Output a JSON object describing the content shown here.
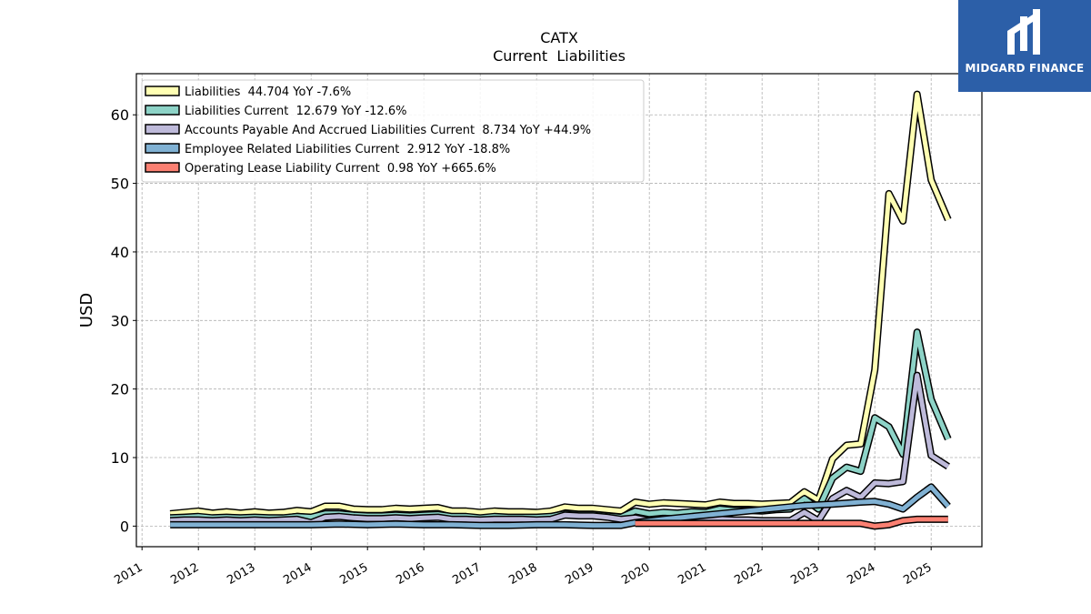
{
  "brand": {
    "name": "MIDGARD FINANCE",
    "bg_color": "#2c5fa8"
  },
  "chart_data": {
    "type": "area",
    "title": "CATX",
    "subtitle": "Current  Liabilities",
    "xlabel": "",
    "ylabel": "USD",
    "xlim": [
      2010.9,
      2025.9
    ],
    "ylim": [
      -3,
      66
    ],
    "x_ticks": [
      "2011",
      "2012",
      "2013",
      "2014",
      "2015",
      "2016",
      "2017",
      "2018",
      "2019",
      "2020",
      "2021",
      "2022",
      "2023",
      "2024",
      "2025"
    ],
    "y_ticks": [
      "0",
      "10",
      "20",
      "30",
      "40",
      "50",
      "60"
    ],
    "grid": true,
    "legend_position": "top-left",
    "series": [
      {
        "name": "Liabilities",
        "legend": "Liabilities  44.704 YoY -7.6%",
        "color": "#ffffb3",
        "points": [
          [
            2011.5,
            1.8
          ],
          [
            2011.75,
            2.0
          ],
          [
            2012.0,
            2.2
          ],
          [
            2012.25,
            1.9
          ],
          [
            2012.5,
            2.1
          ],
          [
            2012.75,
            1.9
          ],
          [
            2013.0,
            2.1
          ],
          [
            2013.25,
            1.9
          ],
          [
            2013.5,
            2.0
          ],
          [
            2013.75,
            2.3
          ],
          [
            2014.0,
            2.1
          ],
          [
            2014.25,
            2.9
          ],
          [
            2014.5,
            2.9
          ],
          [
            2014.75,
            2.5
          ],
          [
            2015.0,
            2.4
          ],
          [
            2015.25,
            2.4
          ],
          [
            2015.5,
            2.6
          ],
          [
            2015.75,
            2.5
          ],
          [
            2016.0,
            2.6
          ],
          [
            2016.25,
            2.7
          ],
          [
            2016.5,
            2.2
          ],
          [
            2016.75,
            2.2
          ],
          [
            2017.0,
            2.0
          ],
          [
            2017.25,
            2.2
          ],
          [
            2017.5,
            2.1
          ],
          [
            2017.75,
            2.1
          ],
          [
            2018.0,
            2.0
          ],
          [
            2018.25,
            2.2
          ],
          [
            2018.5,
            2.8
          ],
          [
            2018.75,
            2.6
          ],
          [
            2019.0,
            2.6
          ],
          [
            2019.25,
            2.4
          ],
          [
            2019.5,
            2.2
          ],
          [
            2019.75,
            3.5
          ],
          [
            2020.0,
            3.2
          ],
          [
            2020.25,
            3.4
          ],
          [
            2020.5,
            3.3
          ],
          [
            2020.75,
            3.2
          ],
          [
            2021.0,
            3.1
          ],
          [
            2021.25,
            3.5
          ],
          [
            2021.5,
            3.3
          ],
          [
            2021.75,
            3.3
          ],
          [
            2022.0,
            3.2
          ],
          [
            2022.25,
            3.3
          ],
          [
            2022.5,
            3.4
          ],
          [
            2022.75,
            5.0
          ],
          [
            2023.0,
            3.8
          ],
          [
            2023.25,
            9.8
          ],
          [
            2023.5,
            11.8
          ],
          [
            2023.75,
            12.0
          ],
          [
            2024.0,
            22.8
          ],
          [
            2024.25,
            48.5
          ],
          [
            2024.5,
            44.5
          ],
          [
            2024.75,
            63.0
          ],
          [
            2025.0,
            50.5
          ],
          [
            2025.3,
            44.7
          ]
        ]
      },
      {
        "name": "Liabilities Current",
        "legend": "Liabilities Current  12.679 YoY -12.6%",
        "color": "#8dd3c7",
        "points": [
          [
            2011.5,
            1.2
          ],
          [
            2011.75,
            1.3
          ],
          [
            2012.0,
            1.4
          ],
          [
            2012.25,
            1.2
          ],
          [
            2012.5,
            1.3
          ],
          [
            2012.75,
            1.2
          ],
          [
            2013.0,
            1.3
          ],
          [
            2013.25,
            1.2
          ],
          [
            2013.5,
            1.2
          ],
          [
            2013.75,
            1.4
          ],
          [
            2014.0,
            1.3
          ],
          [
            2014.25,
            1.8
          ],
          [
            2014.5,
            1.8
          ],
          [
            2014.75,
            1.6
          ],
          [
            2015.0,
            1.5
          ],
          [
            2015.25,
            1.5
          ],
          [
            2015.5,
            1.6
          ],
          [
            2015.75,
            1.5
          ],
          [
            2016.0,
            1.6
          ],
          [
            2016.25,
            1.7
          ],
          [
            2016.5,
            1.4
          ],
          [
            2016.75,
            1.4
          ],
          [
            2017.0,
            1.2
          ],
          [
            2017.25,
            1.4
          ],
          [
            2017.5,
            1.3
          ],
          [
            2017.75,
            1.3
          ],
          [
            2018.0,
            1.3
          ],
          [
            2018.25,
            1.4
          ],
          [
            2018.5,
            1.8
          ],
          [
            2018.75,
            1.7
          ],
          [
            2019.0,
            1.7
          ],
          [
            2019.25,
            1.5
          ],
          [
            2019.5,
            1.3
          ],
          [
            2019.75,
            2.2
          ],
          [
            2020.0,
            1.8
          ],
          [
            2020.25,
            2.0
          ],
          [
            2020.5,
            1.9
          ],
          [
            2020.75,
            2.1
          ],
          [
            2021.0,
            2.0
          ],
          [
            2021.25,
            2.5
          ],
          [
            2021.5,
            2.3
          ],
          [
            2021.75,
            2.3
          ],
          [
            2022.0,
            2.2
          ],
          [
            2022.25,
            2.4
          ],
          [
            2022.5,
            2.5
          ],
          [
            2022.75,
            4.0
          ],
          [
            2023.0,
            2.5
          ],
          [
            2023.25,
            7.0
          ],
          [
            2023.5,
            8.6
          ],
          [
            2023.75,
            8.0
          ],
          [
            2024.0,
            15.8
          ],
          [
            2024.25,
            14.5
          ],
          [
            2024.5,
            10.5
          ],
          [
            2024.75,
            28.3
          ],
          [
            2025.0,
            18.5
          ],
          [
            2025.3,
            12.7
          ]
        ]
      },
      {
        "name": "Accounts Payable And Accrued Liabilities Current",
        "legend": "Accounts Payable And Accrued Liabilities Current  8.734 YoY +44.9%",
        "color": "#bebada",
        "points": [
          [
            2011.5,
            0.8
          ],
          [
            2011.75,
            0.9
          ],
          [
            2012.0,
            0.9
          ],
          [
            2012.25,
            0.8
          ],
          [
            2012.5,
            0.9
          ],
          [
            2012.75,
            0.8
          ],
          [
            2013.0,
            0.9
          ],
          [
            2013.25,
            0.8
          ],
          [
            2013.5,
            0.9
          ],
          [
            2013.75,
            1.0
          ],
          [
            2014.0,
            0.5
          ],
          [
            2014.25,
            1.3
          ],
          [
            2014.5,
            1.4
          ],
          [
            2014.75,
            1.2
          ],
          [
            2015.0,
            1.1
          ],
          [
            2015.25,
            1.1
          ],
          [
            2015.5,
            1.2
          ],
          [
            2015.75,
            1.1
          ],
          [
            2016.0,
            1.2
          ],
          [
            2016.25,
            1.3
          ],
          [
            2016.5,
            1.0
          ],
          [
            2016.75,
            1.0
          ],
          [
            2017.0,
            0.9
          ],
          [
            2017.25,
            1.0
          ],
          [
            2017.5,
            1.0
          ],
          [
            2017.75,
            1.0
          ],
          [
            2018.0,
            0.9
          ],
          [
            2018.25,
            1.0
          ],
          [
            2018.5,
            1.6
          ],
          [
            2018.75,
            1.5
          ],
          [
            2019.0,
            1.5
          ],
          [
            2019.25,
            1.3
          ],
          [
            2019.5,
            1.0
          ],
          [
            2019.75,
            1.2
          ],
          [
            2020.0,
            0.8
          ],
          [
            2020.25,
            0.9
          ],
          [
            2020.5,
            0.8
          ],
          [
            2020.75,
            0.8
          ],
          [
            2021.0,
            0.8
          ],
          [
            2021.25,
            1.0
          ],
          [
            2021.5,
            0.9
          ],
          [
            2021.75,
            0.9
          ],
          [
            2022.0,
            0.8
          ],
          [
            2022.25,
            0.8
          ],
          [
            2022.5,
            0.8
          ],
          [
            2022.75,
            2.0
          ],
          [
            2023.0,
            0.8
          ],
          [
            2023.25,
            4.0
          ],
          [
            2023.5,
            5.2
          ],
          [
            2023.75,
            4.2
          ],
          [
            2024.0,
            6.3
          ],
          [
            2024.25,
            6.2
          ],
          [
            2024.5,
            6.5
          ],
          [
            2024.75,
            22.0
          ],
          [
            2025.0,
            10.3
          ],
          [
            2025.3,
            8.7
          ]
        ]
      },
      {
        "name": "Employee Related Liabilities Current",
        "legend": "Employee Related Liabilities Current  2.912 YoY -18.8%",
        "color": "#80b1d3",
        "points": [
          [
            2011.5,
            0.2
          ],
          [
            2012.0,
            0.2
          ],
          [
            2012.5,
            0.2
          ],
          [
            2013.0,
            0.2
          ],
          [
            2013.5,
            0.2
          ],
          [
            2014.0,
            0.2
          ],
          [
            2014.5,
            0.3
          ],
          [
            2015.0,
            0.2
          ],
          [
            2015.5,
            0.3
          ],
          [
            2016.0,
            0.2
          ],
          [
            2016.5,
            0.2
          ],
          [
            2017.0,
            0.1
          ],
          [
            2017.5,
            0.1
          ],
          [
            2018.0,
            0.2
          ],
          [
            2018.5,
            0.2
          ],
          [
            2019.0,
            0.1
          ],
          [
            2019.5,
            0.1
          ],
          [
            2019.75,
            0.5
          ],
          [
            2020.25,
            1.0
          ],
          [
            2020.75,
            1.4
          ],
          [
            2021.25,
            1.8
          ],
          [
            2021.75,
            2.2
          ],
          [
            2022.25,
            2.6
          ],
          [
            2022.75,
            3.0
          ],
          [
            2023.25,
            3.2
          ],
          [
            2023.75,
            3.5
          ],
          [
            2024.0,
            3.6
          ],
          [
            2024.25,
            3.2
          ],
          [
            2024.5,
            2.5
          ],
          [
            2024.75,
            4.2
          ],
          [
            2025.0,
            5.7
          ],
          [
            2025.3,
            2.9
          ]
        ]
      },
      {
        "name": "Operating Lease Liability Current",
        "legend": "Operating Lease Liability Current  0.98 YoY +665.6%",
        "color": "#fb8072",
        "points": [
          [
            2019.75,
            0.4
          ],
          [
            2020.5,
            0.4
          ],
          [
            2021.25,
            0.4
          ],
          [
            2022.0,
            0.4
          ],
          [
            2022.75,
            0.4
          ],
          [
            2023.25,
            0.4
          ],
          [
            2023.75,
            0.4
          ],
          [
            2024.0,
            0.0
          ],
          [
            2024.25,
            0.2
          ],
          [
            2024.5,
            0.8
          ],
          [
            2024.75,
            1.0
          ],
          [
            2025.0,
            1.0
          ],
          [
            2025.3,
            1.0
          ]
        ]
      }
    ]
  }
}
